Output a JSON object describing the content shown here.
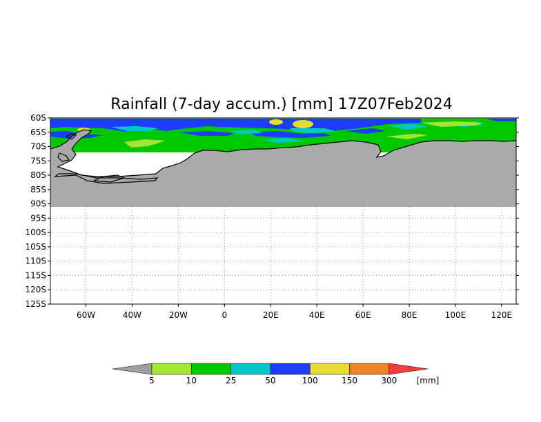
{
  "title": "Rainfall (7-day accum.) [mm] 17Z07Feb2024",
  "y_ticks": [
    "60S",
    "65S",
    "70S",
    "75S",
    "80S",
    "85S",
    "90S",
    "95S",
    "100S",
    "105S",
    "110S",
    "115S",
    "120S",
    "125S"
  ],
  "x_ticks": [
    "60W",
    "40W",
    "20W",
    "0",
    "20E",
    "40E",
    "60E",
    "80E",
    "100E",
    "120E"
  ],
  "colorbar": {
    "labels": [
      "5",
      "10",
      "25",
      "50",
      "100",
      "150",
      "300"
    ],
    "unit": "[mm]",
    "colors": {
      "below": "#a0a0a0",
      "c1": "#a0e632",
      "c2": "#00c800",
      "c3": "#00c8c8",
      "c4": "#1e3cff",
      "c5": "#e6dc32",
      "c6": "#f08228",
      "above": "#fa3c3c"
    }
  },
  "map_colors": {
    "land": "#aaaaaa",
    "coastline": "#000000",
    "grid": "#999999"
  },
  "chart_data": {
    "type": "heatmap",
    "title": "Rainfall (7-day accum.) [mm] 17Z07Feb2024",
    "xlabel": "",
    "ylabel": "",
    "x_range": [
      "70W",
      "127E"
    ],
    "y_range": [
      "60S",
      "125S"
    ],
    "grid": true,
    "legend": "bottom",
    "scale_bounds_mm": [
      5,
      10,
      25,
      50,
      100,
      150,
      300
    ]
  }
}
